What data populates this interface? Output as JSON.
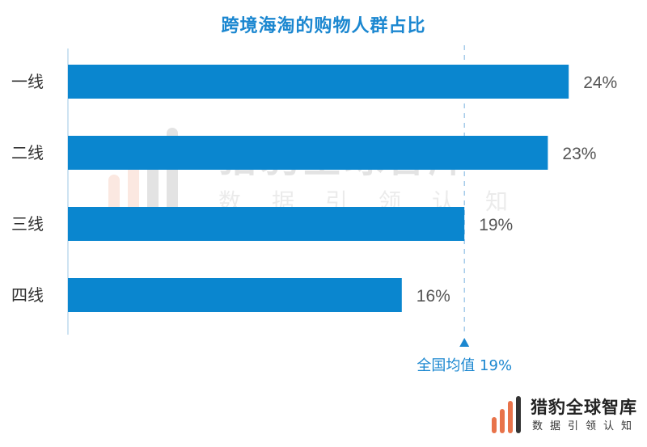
{
  "chart_data": {
    "type": "bar",
    "orientation": "horizontal",
    "title": "跨境海淘的购物人群占比",
    "categories": [
      "一线",
      "二线",
      "三线",
      "四线"
    ],
    "values": [
      24,
      23,
      19,
      16
    ],
    "value_labels": [
      "24%",
      "23%",
      "19%",
      "16%"
    ],
    "xlim": [
      0,
      30
    ],
    "reference_line": {
      "value": 19,
      "label": "全国均值 19%"
    },
    "grid": false,
    "legend": "none"
  },
  "colors": {
    "bar": "#0a86cf",
    "title": "#1b87d0",
    "reference": "#1b87d0",
    "category_label": "#333333",
    "value_label": "#555555",
    "axis": "#9ec7e6"
  },
  "watermark": {
    "name": "猎豹全球智库",
    "slogan": "数据引领认知"
  },
  "logo": {
    "name": "猎豹全球智库",
    "slogan": "数据引领认知",
    "icon": "cheetah-bars-icon"
  }
}
